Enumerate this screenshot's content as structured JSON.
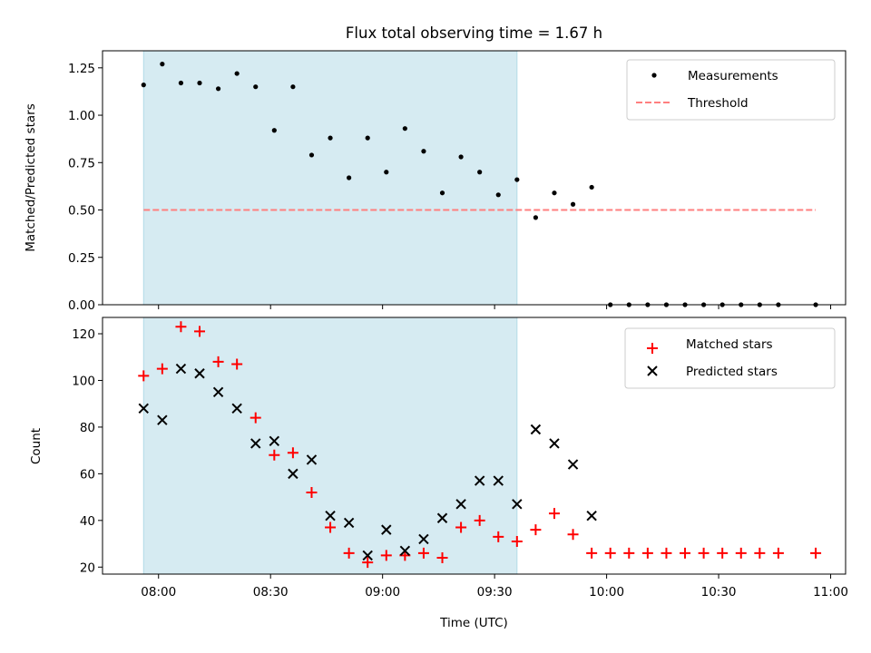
{
  "chart_data": [
    {
      "type": "scatter",
      "title": "Flux total observing time = 1.67 h",
      "xlabel": "",
      "ylabel": "Matched/Predicted stars",
      "xlim_minutes": [
        -15,
        184
      ],
      "ylim": [
        0,
        1.34
      ],
      "yticks": [
        "0.00",
        "0.25",
        "0.50",
        "0.75",
        "1.00",
        "1.25"
      ],
      "ytick_values": [
        0,
        0.25,
        0.5,
        0.75,
        1.0,
        1.25
      ],
      "shaded_range_minutes": [
        -4,
        96
      ],
      "legend_position": "upper right",
      "series": [
        {
          "name": "Measurements",
          "marker": "point",
          "color": "#000000",
          "x_minutes": [
            -4,
            1,
            6,
            11,
            16,
            21,
            26,
            31,
            36,
            41,
            46,
            51,
            56,
            61,
            66,
            71,
            76,
            81,
            86,
            91,
            96,
            101,
            106,
            111,
            116,
            121,
            126,
            131,
            136,
            141,
            146,
            151,
            156,
            161,
            166,
            176
          ],
          "values": [
            1.16,
            1.27,
            1.17,
            1.17,
            1.14,
            1.22,
            1.15,
            0.92,
            1.15,
            0.79,
            0.88,
            0.67,
            0.88,
            0.7,
            0.93,
            0.81,
            0.59,
            0.78,
            0.7,
            0.58,
            0.66,
            0.46,
            0.59,
            0.53,
            0.62,
            0,
            0,
            0,
            0,
            0,
            0,
            0,
            0,
            0,
            0,
            0
          ]
        },
        {
          "name": "Threshold",
          "marker": "dashed-line",
          "color": "#ff7f7f",
          "x_minutes": [
            -4,
            176
          ],
          "values": [
            0.5,
            0.5
          ]
        }
      ]
    },
    {
      "type": "scatter",
      "title": "",
      "xlabel": "Time (UTC)",
      "ylabel": "Count",
      "xlim_minutes": [
        -15,
        184
      ],
      "ylim": [
        17,
        127
      ],
      "yticks": [
        "20",
        "40",
        "60",
        "80",
        "100",
        "120"
      ],
      "ytick_values": [
        20,
        40,
        60,
        80,
        100,
        120
      ],
      "xticks": [
        "08:00",
        "08:30",
        "09:00",
        "09:30",
        "10:00",
        "10:30",
        "11:00"
      ],
      "xtick_minutes": [
        0,
        30,
        60,
        90,
        120,
        150,
        180
      ],
      "shaded_range_minutes": [
        -4,
        96
      ],
      "legend_position": "upper right",
      "series": [
        {
          "name": "Matched stars",
          "marker": "plus",
          "color": "#ff0000",
          "x_minutes": [
            -4,
            1,
            6,
            11,
            16,
            21,
            26,
            31,
            36,
            41,
            46,
            51,
            56,
            61,
            66,
            71,
            76,
            81,
            86,
            91,
            96,
            101,
            106,
            111,
            116,
            121,
            126,
            131,
            136,
            141,
            146,
            151,
            156,
            161,
            166,
            176
          ],
          "values": [
            102,
            105,
            123,
            121,
            108,
            107,
            84,
            68,
            69,
            52,
            37,
            26,
            22,
            25,
            25,
            26,
            24,
            37,
            40,
            33,
            31,
            36,
            43,
            34,
            26,
            26,
            26,
            26,
            26,
            26,
            26,
            26,
            26,
            26,
            26,
            26
          ]
        },
        {
          "name": "Predicted stars",
          "marker": "x",
          "color": "#000000",
          "x_minutes": [
            -4,
            1,
            6,
            11,
            16,
            21,
            26,
            31,
            36,
            41,
            46,
            51,
            56,
            61,
            66,
            71,
            76,
            81,
            86,
            91,
            96,
            101,
            106,
            111,
            116
          ],
          "values": [
            88,
            83,
            105,
            103,
            95,
            88,
            73,
            74,
            60,
            66,
            42,
            39,
            25,
            36,
            27,
            32,
            41,
            47,
            57,
            57,
            47,
            79,
            73,
            64,
            42
          ]
        }
      ]
    }
  ]
}
